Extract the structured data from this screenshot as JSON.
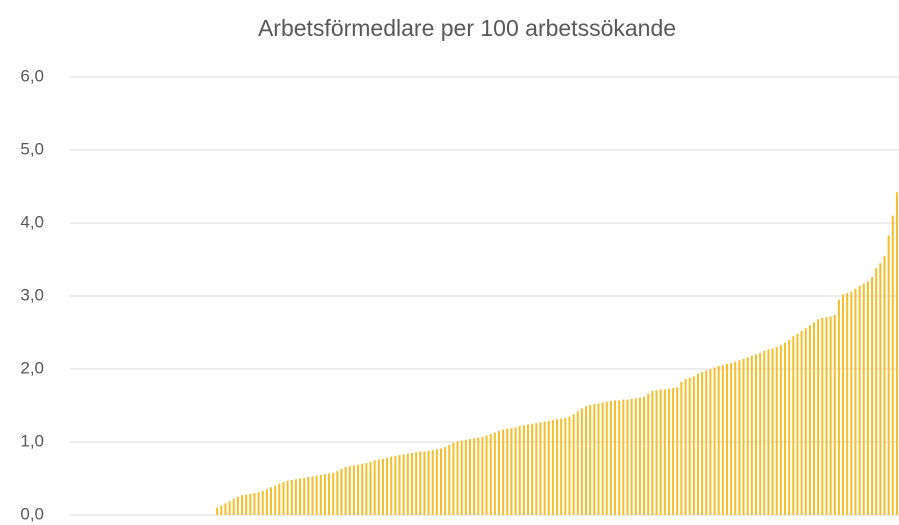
{
  "chart_data": {
    "type": "bar",
    "title": "Arbetsförmedlare per 100 arbetssökande",
    "categories": [
      null,
      null,
      null,
      null,
      null,
      null,
      null,
      null,
      null,
      null,
      null,
      null,
      null,
      null,
      null,
      null,
      null,
      null,
      null,
      null,
      null,
      null,
      null,
      null,
      null,
      null,
      null,
      null,
      null,
      null,
      null,
      null,
      null,
      null,
      null,
      null,
      null,
      null,
      null,
      null,
      null,
      null,
      null,
      null,
      null,
      null,
      null,
      null,
      null,
      null,
      null,
      null,
      null,
      null,
      null,
      null,
      null,
      null,
      null,
      null,
      null,
      null,
      null,
      null,
      null,
      null,
      null,
      null,
      null,
      null,
      null,
      null,
      null,
      null,
      null,
      null,
      null,
      null,
      null,
      null,
      null,
      null,
      null,
      null,
      null,
      null,
      null,
      null,
      null,
      null,
      null,
      null,
      null,
      null,
      null,
      null,
      null,
      null,
      null,
      null,
      null,
      null,
      null,
      null,
      null,
      null,
      null,
      null,
      null,
      null,
      null,
      null,
      null,
      null,
      null,
      null,
      null,
      null,
      null,
      null,
      null,
      null,
      null,
      null,
      null,
      null,
      null,
      null,
      null,
      null,
      null,
      null,
      null,
      null,
      null,
      null,
      null,
      null,
      null,
      null,
      null,
      null,
      null,
      null,
      null,
      null,
      null,
      null,
      null,
      null,
      null,
      null,
      null,
      null,
      null,
      null,
      null,
      null,
      null,
      null,
      null,
      null,
      null,
      null,
      null,
      null,
      null,
      null,
      null,
      null,
      null,
      null,
      null,
      null,
      null,
      null,
      null,
      null,
      null,
      null,
      null,
      null,
      null,
      null,
      null,
      null,
      null,
      null,
      null,
      null,
      null,
      null,
      null,
      null,
      null,
      null,
      null,
      null,
      null,
      null
    ],
    "values": [
      0,
      0,
      0,
      0,
      0,
      0,
      0,
      0,
      0,
      0,
      0,
      0,
      0,
      0,
      0,
      0,
      0,
      0,
      0,
      0,
      0,
      0,
      0,
      0,
      0,
      0,
      0,
      0,
      0,
      0,
      0,
      0,
      0,
      0,
      0,
      0.1,
      0.13,
      0.16,
      0.19,
      0.22,
      0.25,
      0.27,
      0.28,
      0.29,
      0.3,
      0.31,
      0.33,
      0.35,
      0.38,
      0.4,
      0.43,
      0.45,
      0.47,
      0.48,
      0.49,
      0.5,
      0.51,
      0.52,
      0.53,
      0.54,
      0.55,
      0.56,
      0.57,
      0.58,
      0.6,
      0.63,
      0.66,
      0.67,
      0.68,
      0.69,
      0.7,
      0.71,
      0.73,
      0.75,
      0.76,
      0.77,
      0.78,
      0.8,
      0.81,
      0.82,
      0.83,
      0.84,
      0.85,
      0.86,
      0.87,
      0.87,
      0.88,
      0.89,
      0.9,
      0.91,
      0.93,
      0.96,
      0.99,
      1.01,
      1.02,
      1.03,
      1.04,
      1.05,
      1.06,
      1.07,
      1.09,
      1.11,
      1.13,
      1.15,
      1.17,
      1.18,
      1.19,
      1.2,
      1.22,
      1.23,
      1.24,
      1.25,
      1.26,
      1.27,
      1.28,
      1.29,
      1.3,
      1.31,
      1.32,
      1.33,
      1.35,
      1.38,
      1.42,
      1.46,
      1.49,
      1.51,
      1.52,
      1.53,
      1.54,
      1.55,
      1.56,
      1.57,
      1.57,
      1.58,
      1.58,
      1.59,
      1.6,
      1.61,
      1.62,
      1.66,
      1.7,
      1.71,
      1.72,
      1.72,
      1.73,
      1.74,
      1.75,
      1.82,
      1.86,
      1.88,
      1.9,
      1.94,
      1.96,
      1.98,
      2.0,
      2.02,
      2.04,
      2.05,
      2.07,
      2.08,
      2.1,
      2.12,
      2.14,
      2.16,
      2.18,
      2.2,
      2.22,
      2.25,
      2.27,
      2.28,
      2.3,
      2.33,
      2.36,
      2.4,
      2.45,
      2.48,
      2.52,
      2.56,
      2.6,
      2.64,
      2.68,
      2.7,
      2.71,
      2.72,
      2.74,
      2.95,
      3.02,
      3.04,
      3.06,
      3.1,
      3.14,
      3.17,
      3.2,
      3.26,
      3.38,
      3.45,
      3.55,
      3.83,
      4.1,
      4.42
    ],
    "color": "#f2bf2a",
    "ylim": [
      0,
      6
    ],
    "yticks": [
      {
        "value": 0,
        "label": "0,0"
      },
      {
        "value": 1,
        "label": "1,0"
      },
      {
        "value": 2,
        "label": "2,0"
      },
      {
        "value": 3,
        "label": "3,0"
      },
      {
        "value": 4,
        "label": "4,0"
      },
      {
        "value": 5,
        "label": "5,0"
      },
      {
        "value": 6,
        "label": "6,0"
      }
    ],
    "grid": true
  }
}
